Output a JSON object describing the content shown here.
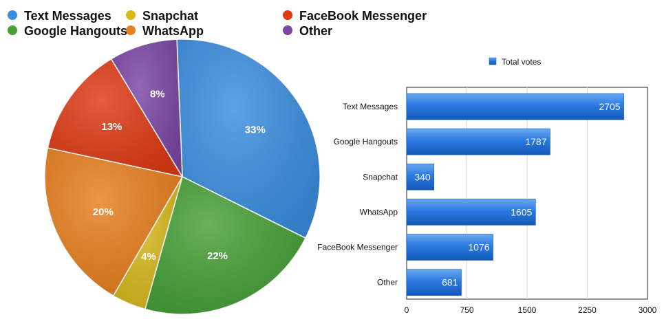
{
  "chart_data": [
    {
      "type": "pie",
      "legend_position": "top",
      "slices": [
        {
          "label": "Text Messages",
          "value": 33,
          "display": "33%",
          "color": "#3b8ee0"
        },
        {
          "label": "Google Hangouts",
          "value": 22,
          "display": "22%",
          "color": "#46a036"
        },
        {
          "label": "Snapchat",
          "value": 4,
          "display": "4%",
          "color": "#d8b91c"
        },
        {
          "label": "WhatsApp",
          "value": 20,
          "display": "20%",
          "color": "#e97f1e"
        },
        {
          "label": "FaceBook Messenger",
          "value": 13,
          "display": "13%",
          "color": "#df3a14"
        },
        {
          "label": "Other",
          "value": 8,
          "display": "8%",
          "color": "#7b46a6"
        }
      ]
    },
    {
      "type": "bar",
      "orientation": "horizontal",
      "legend": "Total votes",
      "legend_position": "top",
      "categories": [
        "Text Messages",
        "Google Hangouts",
        "Snapchat",
        "WhatsApp",
        "FaceBook Messenger",
        "Other"
      ],
      "series": [
        {
          "name": "Total votes",
          "values": [
            2705,
            1787,
            340,
            1605,
            1076,
            681
          ],
          "color": "#1f6fd6"
        }
      ],
      "xlim": [
        0,
        3000
      ],
      "xticks": [
        0,
        750,
        1500,
        2250,
        3000
      ],
      "grid": true
    }
  ]
}
